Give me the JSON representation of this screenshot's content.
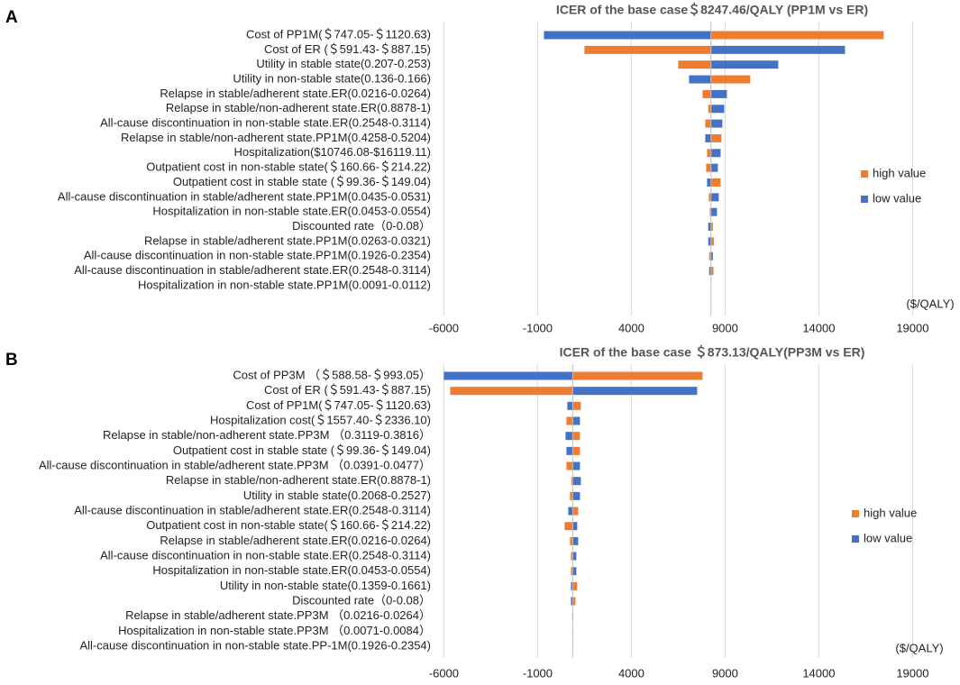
{
  "chart_data": [
    {
      "type": "tornado",
      "panel": "A",
      "title": "ICER of the base case＄8247.46/QALY (PP1M vs ER)",
      "base": 8247.46,
      "categories": [
        "Cost of PP1M(＄747.05-＄1120.63)",
        "Cost of ER (＄591.43-＄887.15)",
        "Utility in stable state(0.207-0.253)",
        "Utility in non-stable state(0.136-0.166)",
        "Relapse in stable/adherent state.ER(0.0216-0.0264)",
        "Relapse in stable/non-adherent state.ER(0.8878-1)",
        "All-cause discontinuation in non-stable state.ER(0.2548-0.3114)",
        "Relapse in stable/non-adherent state.PP1M(0.4258-0.5204)",
        "Hospitalization($10746.08-$16119.11)",
        "Outpatient cost in non-stable state(＄160.66-＄214.22)",
        "Outpatient cost in stable state (＄99.36-＄149.04)",
        "All-cause discontinuation in stable/adherent state.PP1M(0.0435-0.0531)",
        "Hospitalization in non-stable state.ER(0.0453-0.0554)",
        "Discounted rate（0-0.08）",
        "Relapse in stable/adherent state.PP1M(0.0263-0.0321)",
        "All-cause discontinuation in non-stable state.PP1M(0.1926-0.2354)",
        "All-cause discontinuation in stable/adherent state.ER(0.2548-0.3114)",
        "Hospitalization in non-stable state.PP1M(0.0091-0.0112)"
      ],
      "series": [
        {
          "name": "high value",
          "color": "#ed7d31",
          "values": [
            17460,
            1500,
            6500,
            10346,
            7798,
            8100,
            7942,
            8808,
            8038,
            7990,
            8760,
            8135,
            8183,
            8350,
            8400,
            8150,
            8380,
            8247.46
          ]
        },
        {
          "name": "low value",
          "color": "#4472c4",
          "values": [
            -663,
            15394,
            11836,
            7077,
            9096,
            8952,
            8856,
            7942,
            8760,
            8615,
            8038,
            8663,
            8567,
            8100,
            8100,
            8350,
            8150,
            8247.46
          ]
        }
      ],
      "xlim": [
        -6500,
        21000
      ],
      "xticks": [
        -6000,
        -1000,
        4000,
        9000,
        14000,
        19000
      ],
      "x_unit": "($/QALY)",
      "grid": true,
      "legend": "right"
    },
    {
      "type": "tornado",
      "panel": "B",
      "title": "ICER of the base case ＄873.13/QALY(PP3M vs ER)",
      "base": 873.13,
      "categories": [
        "Cost of PP3M （＄588.58-＄993.05）",
        "Cost of ER (＄591.43-＄887.15)",
        "Cost of PP1M(＄747.05-＄1120.63)",
        "Hospitalization cost(＄1557.40-＄2336.10)",
        "Relapse in stable/non-adherent state.PP3M （0.3119-0.3816）",
        "Outpatient cost in stable state (＄99.36-＄149.04)",
        "All-cause discontinuation in stable/adherent state.PP3M （0.0391-0.0477）",
        "Relapse in stable/non-adherent state.ER(0.8878-1)",
        "Utility in stable state(0.2068-0.2527)",
        "All-cause discontinuation in stable/adherent state.ER(0.2548-0.3114)",
        "Outpatient cost in non-stable state(＄160.66-＄214.22)",
        "Relapse in stable/adherent state.ER(0.0216-0.0264)",
        "All-cause discontinuation in non-stable state.ER(0.2548-0.3114)",
        "Hospitalization in non-stable state.ER(0.0453-0.0554)",
        "Utility in non-stable state(0.1359-0.1661)",
        "Discounted rate（0-0.08）",
        "Relapse in stable/adherent state.PP3M （0.0216-0.0264）",
        "Hospitalization in non-stable state.PP3M （0.0071-0.0084）",
        "All-cause discontinuation in non-stable state.PP-1M(0.1926-0.2354)"
      ],
      "series": [
        {
          "name": "high value",
          "color": "#ed7d31",
          "values": [
            7798,
            -5664,
            1307,
            538,
            1260,
            1260,
            538,
            800,
            730,
            1163,
            442,
            730,
            778,
            778,
            1115,
            1019,
            850,
            860,
            865
          ]
        },
        {
          "name": "low value",
          "color": "#4472c4",
          "values": [
            -6000,
            7510,
            586,
            1260,
            490,
            538,
            1260,
            1307,
            1260,
            634,
            1115,
            1163,
            1067,
            1067,
            778,
            778,
            900,
            890,
            885
          ]
        }
      ],
      "xlim": [
        -6500,
        21000
      ],
      "xticks": [
        -6000,
        -1000,
        4000,
        9000,
        14000,
        19000
      ],
      "x_unit": "($/QALY)",
      "grid": true,
      "legend": "right"
    }
  ]
}
